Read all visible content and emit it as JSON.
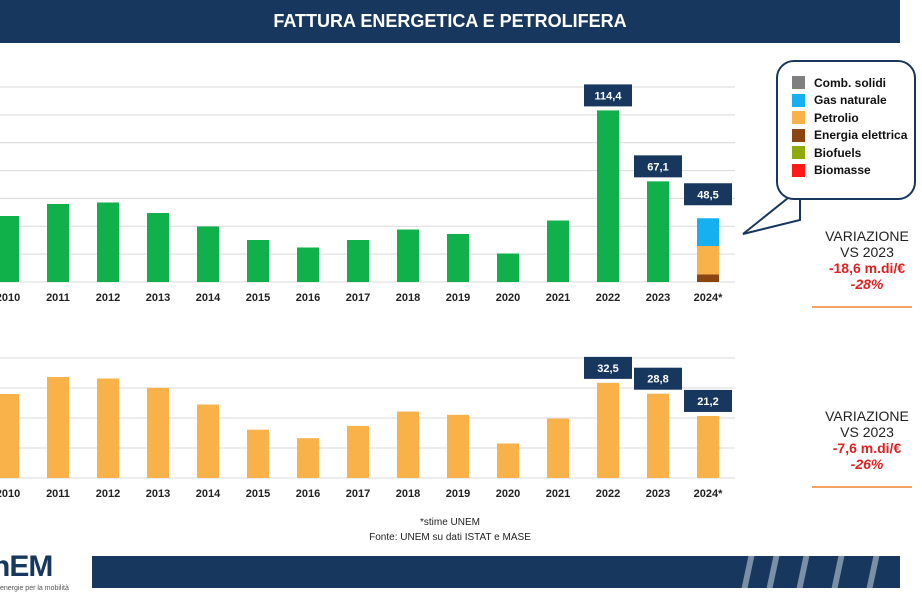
{
  "header": {
    "title": "FATTURA ENERGETICA E PETROLIFERA"
  },
  "chart_data": [
    {
      "type": "bar",
      "categories": [
        "2010",
        "2011",
        "2012",
        "2013",
        "2014",
        "2015",
        "2016",
        "2017",
        "2018",
        "2019",
        "2020",
        "2021",
        "2022",
        "2023",
        "2024*"
      ],
      "values": [
        44,
        52,
        53,
        46,
        37,
        28,
        23,
        28,
        35,
        32,
        19,
        41,
        114.4,
        67.1,
        48.5
      ],
      "data_labels": [
        null,
        null,
        null,
        null,
        null,
        null,
        null,
        null,
        null,
        null,
        null,
        null,
        "114,4",
        "67,1",
        "48,5"
      ],
      "color": "#10b04b",
      "stacked_last": [
        {
          "name": "Energia elettrica",
          "value": 5,
          "color": "#8b4513"
        },
        {
          "name": "Petrolio",
          "value": 19,
          "color": "#f9b24a"
        },
        {
          "name": "Gas naturale",
          "value": 18.5,
          "color": "#16b0f0"
        }
      ],
      "ylim": [
        0,
        130
      ],
      "grid": true
    },
    {
      "type": "bar",
      "categories": [
        "2010",
        "2011",
        "2012",
        "2013",
        "2014",
        "2015",
        "2016",
        "2017",
        "2018",
        "2019",
        "2020",
        "2021",
        "2022",
        "2023",
        "2024*"
      ],
      "values": [
        28.7,
        34.5,
        34.0,
        30.8,
        25.1,
        16.5,
        13.6,
        17.8,
        22.7,
        21.6,
        11.8,
        20.3,
        32.5,
        28.8,
        21.2
      ],
      "data_labels": [
        null,
        null,
        null,
        null,
        null,
        null,
        null,
        null,
        null,
        null,
        null,
        null,
        "32,5",
        "28,8",
        "21,2"
      ],
      "color": "#f9b24a",
      "ylim": [
        0,
        41
      ],
      "grid": true
    }
  ],
  "legend": {
    "items": [
      {
        "label": "Comb. solidi",
        "color": "#7f7f7f"
      },
      {
        "label": "Gas naturale",
        "color": "#16b0f0"
      },
      {
        "label": "Petrolio",
        "color": "#f9b24a"
      },
      {
        "label": "Energia elettrica",
        "color": "#8b4513"
      },
      {
        "label": "Biofuels",
        "color": "#8faa0f"
      },
      {
        "label": "Biomasse",
        "color": "#ff1a1a"
      }
    ]
  },
  "variation_top": {
    "line1": "VARIAZIONE",
    "line2": "VS 2023",
    "value": "-18,6 m.di/€",
    "percent": "-28%"
  },
  "variation_bottom": {
    "line1": "VARIAZIONE",
    "line2": "VS 2023",
    "value": "-7,6 m.di/€",
    "percent": "-26%"
  },
  "footnote": {
    "line1": "*stime UNEM",
    "line2": "Fonte: UNEM su dati ISTAT e MASE"
  },
  "logo": {
    "text": "nEM",
    "tagline": "energie per la mobilità"
  }
}
